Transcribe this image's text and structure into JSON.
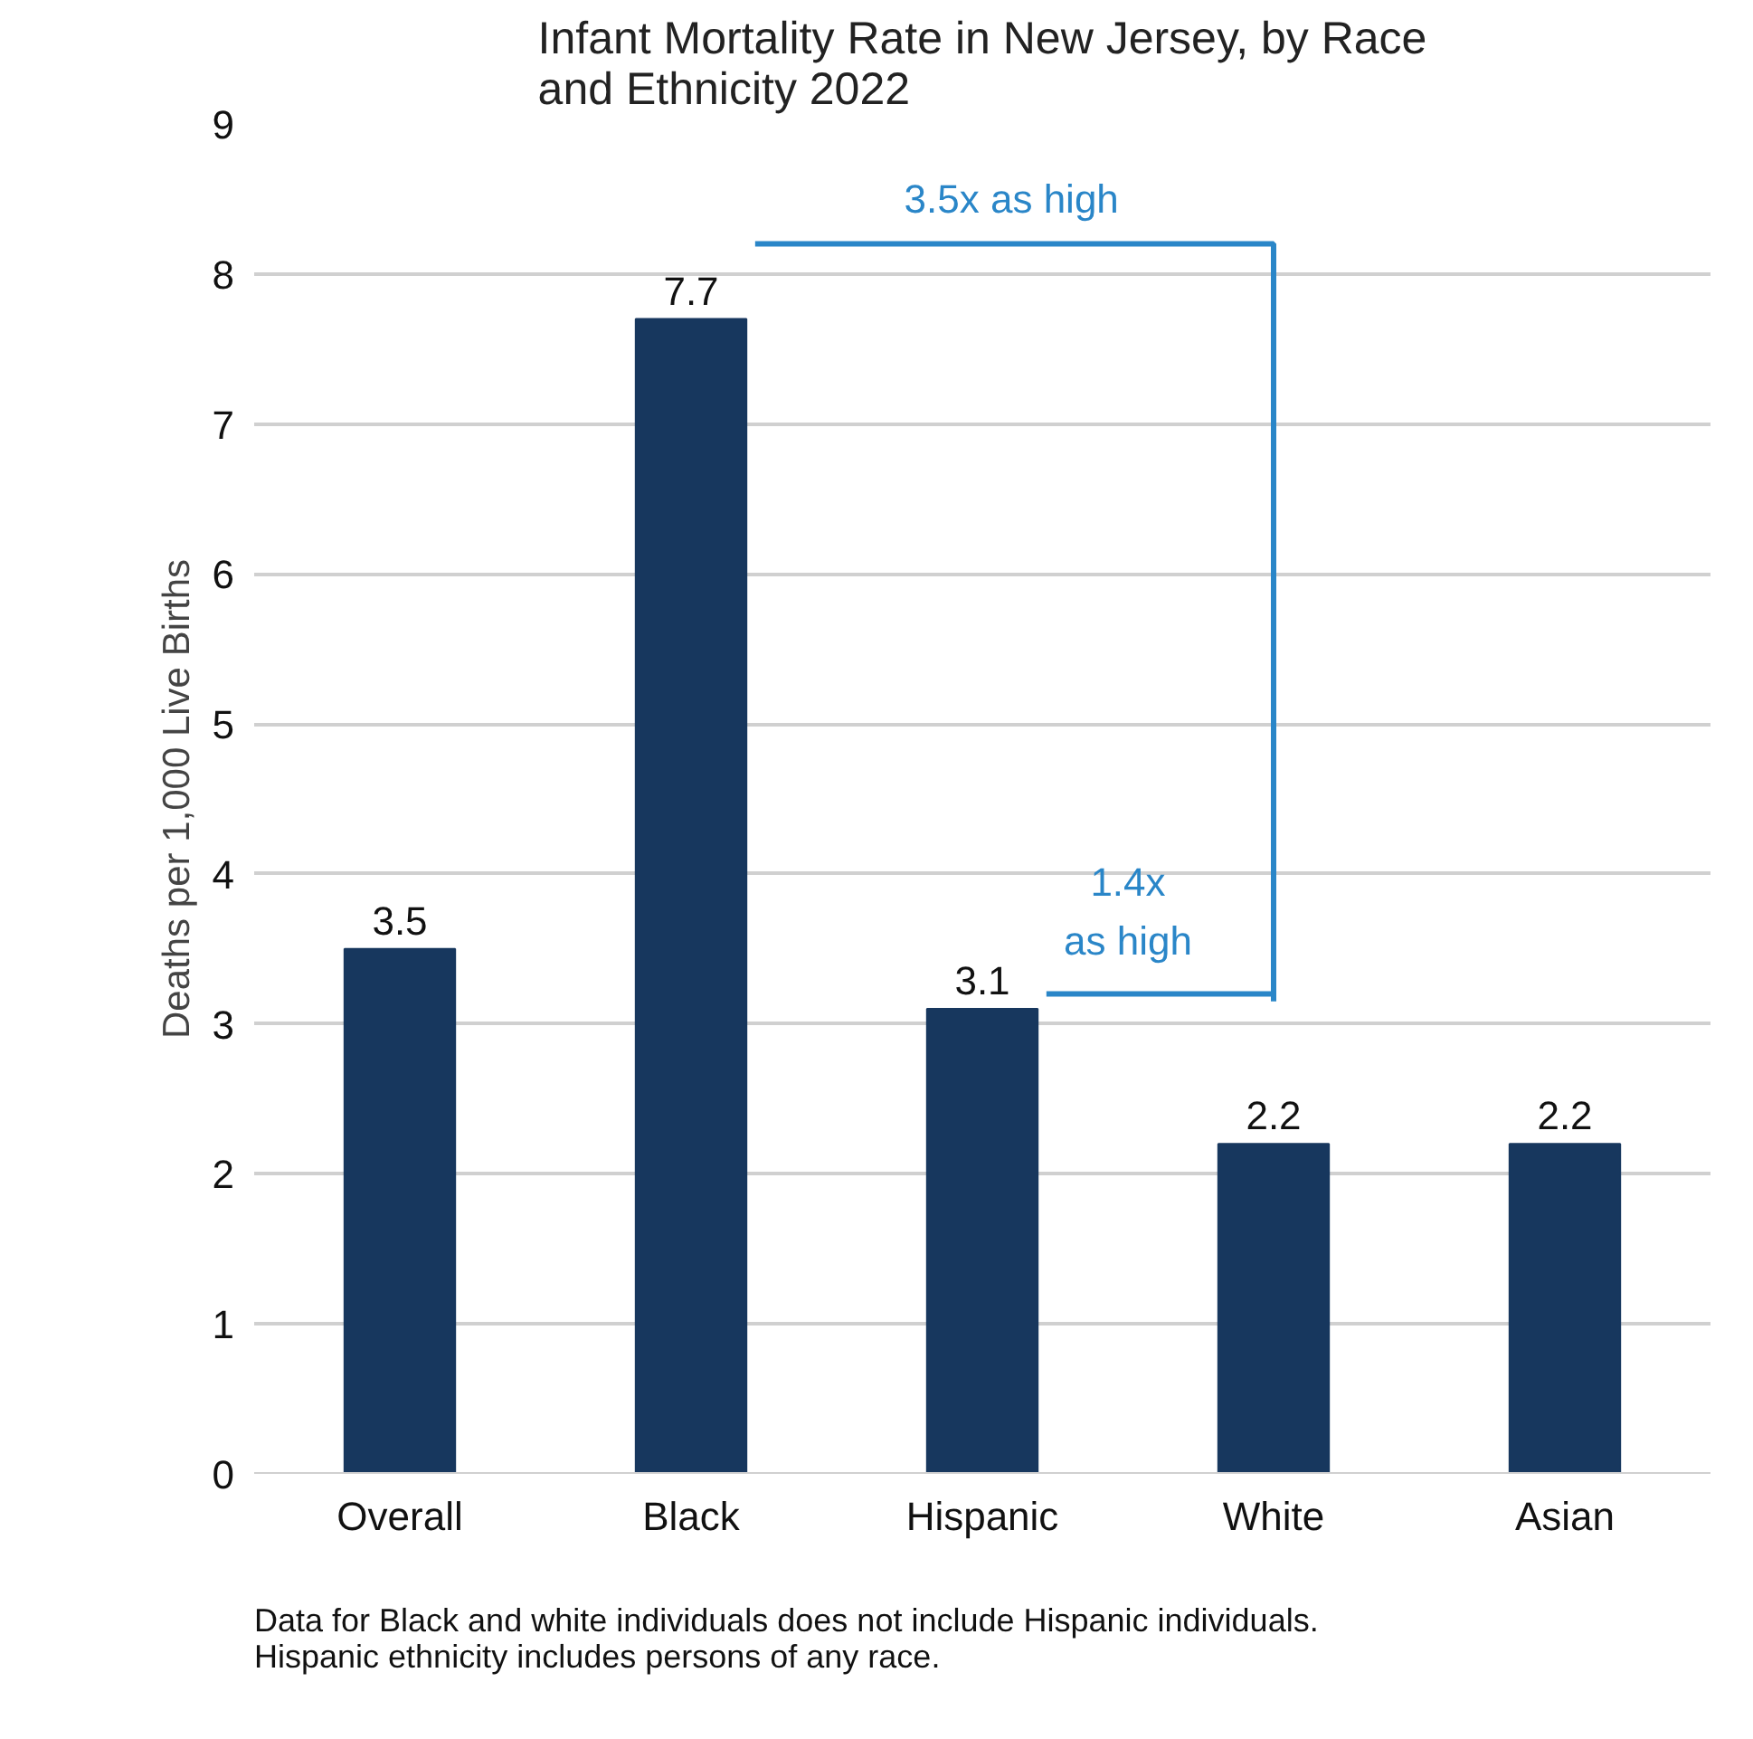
{
  "chart_data": {
    "type": "bar",
    "title": "Infant Mortality Rate in New Jersey, by Race\nand Ethnicity 2022",
    "ylabel": "Deaths per 1,000 Live Births",
    "categories": [
      "Overall",
      "Black",
      "Hispanic",
      "White",
      "Asian"
    ],
    "values": [
      3.5,
      7.7,
      3.1,
      2.2,
      2.2
    ],
    "color": "#17375e",
    "ylim": [
      0,
      9
    ],
    "yticks": [
      0,
      1,
      2,
      3,
      4,
      5,
      6,
      7,
      8,
      9
    ],
    "grid": "y",
    "data_labels": true,
    "annotations": [
      "3.5x as high",
      "1.4x\nas high",
      "Data for Black and white individuals does not include Hispanic individuals.\nHispanic ethnicity includes persons of any race."
    ]
  }
}
